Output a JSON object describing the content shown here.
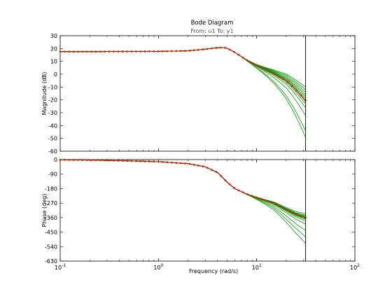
{
  "chart_data": {
    "type": "line",
    "title": "Bode Diagram",
    "subtitle": "From: u1  To: y1",
    "xlabel": "Frequency  (rad/s)",
    "x_scale": "log",
    "x_range": [
      0.1,
      100
    ],
    "x_ticks": [
      0.1,
      1,
      10,
      100
    ],
    "x_tick_labels": [
      {
        "base": "10",
        "exp": "-1"
      },
      {
        "base": "10",
        "exp": "0"
      },
      {
        "base": "10",
        "exp": "1"
      },
      {
        "base": "10",
        "exp": "2"
      }
    ],
    "cutoff_frequency": 31.4,
    "colors": {
      "ensemble": "#00a000",
      "nominal_line": "#cc0000",
      "nominal_marker": "#cc2a00",
      "cutoff": "#000000"
    },
    "panels": [
      {
        "name": "magnitude",
        "ylabel": "Magnitude (dB)",
        "ylim": [
          -60,
          30
        ],
        "yticks": [
          30,
          20,
          10,
          0,
          -10,
          -20,
          -30,
          -40,
          -50,
          -60
        ],
        "nominal": {
          "x": [
            0.1,
            0.2,
            0.5,
            1,
            2,
            3,
            4,
            4.5,
            5,
            6,
            8,
            10,
            15,
            20,
            25,
            31.4
          ],
          "y": [
            17.6,
            17.6,
            17.7,
            17.8,
            18.2,
            19.5,
            20.6,
            20.8,
            20.2,
            17,
            10.8,
            6.8,
            0.5,
            -5,
            -12,
            -20.5
          ]
        },
        "ensemble_end_values": [
          -10,
          -12,
          -14,
          -16,
          -17.5,
          -19,
          -21,
          -23,
          -26,
          -32,
          -44,
          -49
        ]
      },
      {
        "name": "phase",
        "ylabel": "Phase (deg)",
        "ylim": [
          -630,
          0
        ],
        "yticks": [
          0,
          -90,
          -180,
          -270,
          -360,
          -450,
          -540,
          -630
        ],
        "nominal": {
          "x": [
            0.1,
            0.2,
            0.5,
            1,
            2,
            3,
            4,
            5,
            6,
            8,
            10,
            15,
            20,
            25,
            31.4
          ],
          "y": [
            -1,
            -3,
            -8,
            -13,
            -25,
            -45,
            -80,
            -140,
            -180,
            -215,
            -235,
            -270,
            -310,
            -340,
            -360
          ]
        },
        "ensemble_end_values": [
          -335,
          -345,
          -350,
          -355,
          -360,
          -365,
          -370,
          -380,
          -400,
          -440,
          -480,
          -520
        ]
      }
    ]
  }
}
